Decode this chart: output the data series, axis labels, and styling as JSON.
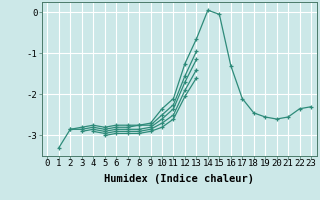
{
  "background_color": "#cce8e8",
  "grid_color": "#ffffff",
  "line_color": "#2e8b7a",
  "marker_color": "#2e8b7a",
  "xlabel": "Humidex (Indice chaleur)",
  "xlabel_fontsize": 7.5,
  "tick_fontsize": 6.5,
  "ylim": [
    -3.5,
    0.25
  ],
  "xlim": [
    -0.5,
    23.5
  ],
  "yticks": [
    0,
    -1,
    -2,
    -3
  ],
  "xticks": [
    0,
    1,
    2,
    3,
    4,
    5,
    6,
    7,
    8,
    9,
    10,
    11,
    12,
    13,
    14,
    15,
    16,
    17,
    18,
    19,
    20,
    21,
    22,
    23
  ],
  "series": [
    [
      null,
      -3.3,
      -2.85,
      -2.8,
      -2.75,
      -2.8,
      -2.75,
      -2.75,
      -2.75,
      -2.7,
      -2.35,
      -2.1,
      -1.25,
      -0.65,
      0.05,
      -0.05,
      -1.3,
      -2.1,
      -2.45,
      -2.55,
      -2.6,
      -2.55,
      -2.35,
      -2.3
    ],
    [
      null,
      null,
      -2.85,
      -2.85,
      -2.8,
      -2.85,
      -2.8,
      -2.8,
      -2.75,
      -2.75,
      -2.5,
      -2.25,
      -1.55,
      -0.95,
      null,
      null,
      null,
      null,
      null,
      null,
      null,
      null,
      null,
      null
    ],
    [
      null,
      null,
      null,
      -2.9,
      -2.85,
      -2.9,
      -2.85,
      -2.85,
      -2.85,
      -2.8,
      -2.6,
      -2.35,
      -1.7,
      -1.15,
      null,
      null,
      null,
      null,
      null,
      null,
      null,
      null,
      null,
      null
    ],
    [
      null,
      null,
      null,
      null,
      -2.9,
      -2.95,
      -2.9,
      -2.9,
      -2.9,
      -2.85,
      -2.7,
      -2.5,
      -1.9,
      -1.4,
      null,
      null,
      null,
      null,
      null,
      null,
      null,
      null,
      null,
      null
    ],
    [
      null,
      null,
      null,
      null,
      null,
      -3.0,
      -2.95,
      -2.95,
      -2.95,
      -2.9,
      -2.8,
      -2.6,
      -2.05,
      -1.6,
      null,
      null,
      null,
      null,
      null,
      null,
      null,
      null,
      null,
      null
    ]
  ]
}
